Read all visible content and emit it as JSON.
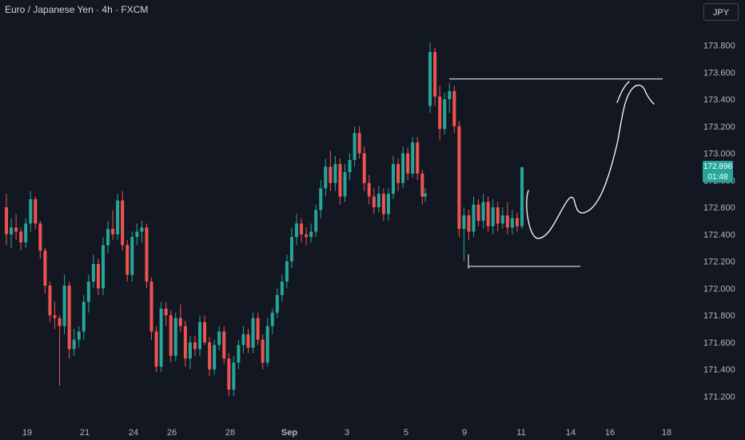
{
  "header": {
    "symbol_title": "Euro / Japanese Yen · 4h · FXCM",
    "currency_button": "JPY"
  },
  "last_price": {
    "value": "172.896",
    "countdown": "01:48"
  },
  "colors": {
    "background": "#131722",
    "up": "#26a69a",
    "down": "#ef5350",
    "text": "#b2b5be",
    "drawing": "#ffffff"
  },
  "chart_data": {
    "type": "candlestick",
    "y_ticks": [
      "173.800",
      "173.600",
      "173.400",
      "173.200",
      "173.000",
      "172.800",
      "172.600",
      "172.400",
      "172.200",
      "172.000",
      "171.800",
      "171.600",
      "171.400",
      "171.200"
    ],
    "x_ticks": [
      "19",
      "21",
      "24",
      "26",
      "28",
      "Sep",
      "3",
      "5",
      "9",
      "11",
      "14",
      "16",
      "18"
    ],
    "ylim": [
      171.05,
      173.98
    ],
    "candles": [
      [
        172.6,
        172.7,
        172.32,
        172.4
      ],
      [
        172.4,
        172.52,
        172.3,
        172.45
      ],
      [
        172.45,
        172.55,
        172.36,
        172.42
      ],
      [
        172.42,
        172.45,
        172.28,
        172.34
      ],
      [
        172.34,
        172.52,
        172.3,
        172.48
      ],
      [
        172.48,
        172.72,
        172.42,
        172.66
      ],
      [
        172.66,
        172.68,
        172.44,
        172.48
      ],
      [
        172.48,
        172.5,
        172.22,
        172.28
      ],
      [
        172.28,
        172.3,
        171.96,
        172.02
      ],
      [
        172.02,
        172.05,
        171.75,
        171.8
      ],
      [
        171.8,
        171.9,
        171.7,
        171.78
      ],
      [
        171.78,
        171.8,
        171.28,
        171.72
      ],
      [
        171.72,
        172.1,
        171.66,
        172.02
      ],
      [
        172.02,
        172.05,
        171.48,
        171.55
      ],
      [
        171.55,
        171.7,
        171.5,
        171.62
      ],
      [
        171.62,
        171.72,
        171.56,
        171.68
      ],
      [
        171.68,
        171.95,
        171.62,
        171.9
      ],
      [
        171.9,
        172.1,
        171.82,
        172.05
      ],
      [
        172.05,
        172.25,
        172.0,
        172.18
      ],
      [
        172.18,
        172.22,
        171.95,
        172.0
      ],
      [
        172.0,
        172.38,
        171.95,
        172.32
      ],
      [
        172.32,
        172.5,
        172.26,
        172.44
      ],
      [
        172.44,
        172.58,
        172.36,
        172.4
      ],
      [
        172.4,
        172.7,
        172.36,
        172.65
      ],
      [
        172.65,
        172.72,
        172.28,
        172.32
      ],
      [
        172.32,
        172.36,
        172.05,
        172.1
      ],
      [
        172.1,
        172.42,
        172.05,
        172.38
      ],
      [
        172.38,
        172.48,
        172.32,
        172.42
      ],
      [
        172.42,
        172.5,
        172.34,
        172.45
      ],
      [
        172.45,
        172.48,
        172.0,
        172.05
      ],
      [
        172.05,
        172.08,
        171.62,
        171.68
      ],
      [
        171.68,
        171.72,
        171.38,
        171.42
      ],
      [
        171.42,
        171.9,
        171.38,
        171.85
      ],
      [
        171.85,
        171.9,
        171.72,
        171.8
      ],
      [
        171.8,
        171.84,
        171.45,
        171.5
      ],
      [
        171.5,
        171.82,
        171.46,
        171.78
      ],
      [
        171.78,
        171.88,
        171.68,
        171.72
      ],
      [
        171.72,
        171.76,
        171.42,
        171.48
      ],
      [
        171.48,
        171.65,
        171.4,
        171.6
      ],
      [
        171.6,
        171.65,
        171.5,
        171.55
      ],
      [
        171.55,
        171.8,
        171.5,
        171.75
      ],
      [
        171.75,
        171.8,
        171.58,
        171.6
      ],
      [
        171.6,
        171.64,
        171.35,
        171.4
      ],
      [
        171.4,
        171.62,
        171.36,
        171.58
      ],
      [
        171.58,
        171.72,
        171.54,
        171.68
      ],
      [
        171.68,
        171.72,
        171.44,
        171.48
      ],
      [
        171.48,
        171.52,
        171.2,
        171.25
      ],
      [
        171.25,
        171.5,
        171.2,
        171.45
      ],
      [
        171.45,
        171.62,
        171.4,
        171.58
      ],
      [
        171.58,
        171.72,
        171.52,
        171.66
      ],
      [
        171.66,
        171.7,
        171.52,
        171.56
      ],
      [
        171.56,
        171.82,
        171.52,
        171.78
      ],
      [
        171.78,
        171.82,
        171.58,
        171.62
      ],
      [
        171.62,
        171.66,
        171.4,
        171.45
      ],
      [
        171.45,
        171.78,
        171.42,
        171.72
      ],
      [
        171.72,
        171.85,
        171.66,
        171.82
      ],
      [
        171.82,
        172.0,
        171.78,
        171.95
      ],
      [
        171.95,
        172.1,
        171.9,
        172.05
      ],
      [
        172.05,
        172.25,
        172.0,
        172.2
      ],
      [
        172.2,
        172.45,
        172.15,
        172.38
      ],
      [
        172.38,
        172.55,
        172.32,
        172.48
      ],
      [
        172.48,
        172.52,
        172.34,
        172.4
      ],
      [
        172.4,
        172.45,
        172.32,
        172.38
      ],
      [
        172.38,
        172.48,
        172.34,
        172.42
      ],
      [
        172.42,
        172.62,
        172.38,
        172.58
      ],
      [
        172.58,
        172.8,
        172.52,
        172.74
      ],
      [
        172.74,
        172.96,
        172.68,
        172.9
      ],
      [
        172.9,
        173.02,
        172.72,
        172.78
      ],
      [
        172.78,
        172.98,
        172.72,
        172.92
      ],
      [
        172.92,
        172.96,
        172.62,
        172.68
      ],
      [
        172.68,
        172.92,
        172.64,
        172.86
      ],
      [
        172.86,
        173.0,
        172.8,
        172.95
      ],
      [
        172.95,
        173.2,
        172.9,
        173.15
      ],
      [
        173.15,
        173.2,
        172.96,
        173.0
      ],
      [
        173.0,
        173.05,
        172.72,
        172.78
      ],
      [
        172.78,
        172.84,
        172.62,
        172.68
      ],
      [
        172.68,
        172.74,
        172.55,
        172.6
      ],
      [
        172.6,
        172.76,
        172.56,
        172.7
      ],
      [
        172.7,
        172.74,
        172.5,
        172.55
      ],
      [
        172.55,
        172.74,
        172.5,
        172.7
      ],
      [
        172.7,
        172.98,
        172.66,
        172.92
      ],
      [
        172.92,
        172.96,
        172.72,
        172.78
      ],
      [
        172.78,
        173.05,
        172.74,
        173.0
      ],
      [
        173.0,
        173.04,
        172.8,
        172.85
      ],
      [
        172.85,
        173.12,
        172.82,
        173.08
      ],
      [
        173.08,
        173.12,
        172.8,
        172.85
      ],
      [
        172.85,
        172.88,
        172.62,
        172.68
      ],
      [
        172.68,
        172.74,
        172.64,
        172.7
      ],
      [
        173.35,
        173.82,
        173.3,
        173.75
      ],
      [
        173.75,
        173.78,
        173.35,
        173.42
      ],
      [
        173.42,
        173.5,
        173.1,
        173.18
      ],
      [
        173.18,
        173.45,
        173.14,
        173.4
      ],
      [
        173.4,
        173.52,
        173.3,
        173.46
      ],
      [
        173.46,
        173.5,
        173.15,
        173.2
      ],
      [
        173.2,
        173.24,
        172.38,
        172.44
      ],
      [
        172.44,
        172.6,
        172.2,
        172.54
      ],
      [
        172.54,
        172.58,
        172.36,
        172.42
      ],
      [
        172.42,
        172.68,
        172.38,
        172.62
      ],
      [
        172.62,
        172.66,
        172.46,
        172.5
      ],
      [
        172.5,
        172.7,
        172.44,
        172.64
      ],
      [
        172.64,
        172.68,
        172.42,
        172.46
      ],
      [
        172.46,
        172.66,
        172.4,
        172.6
      ],
      [
        172.6,
        172.64,
        172.42,
        172.48
      ],
      [
        172.48,
        172.6,
        172.44,
        172.54
      ],
      [
        172.54,
        172.64,
        172.4,
        172.45
      ],
      [
        172.45,
        172.58,
        172.4,
        172.52
      ],
      [
        172.52,
        172.56,
        172.42,
        172.46
      ],
      [
        172.46,
        172.9,
        172.44,
        172.896
      ]
    ]
  }
}
